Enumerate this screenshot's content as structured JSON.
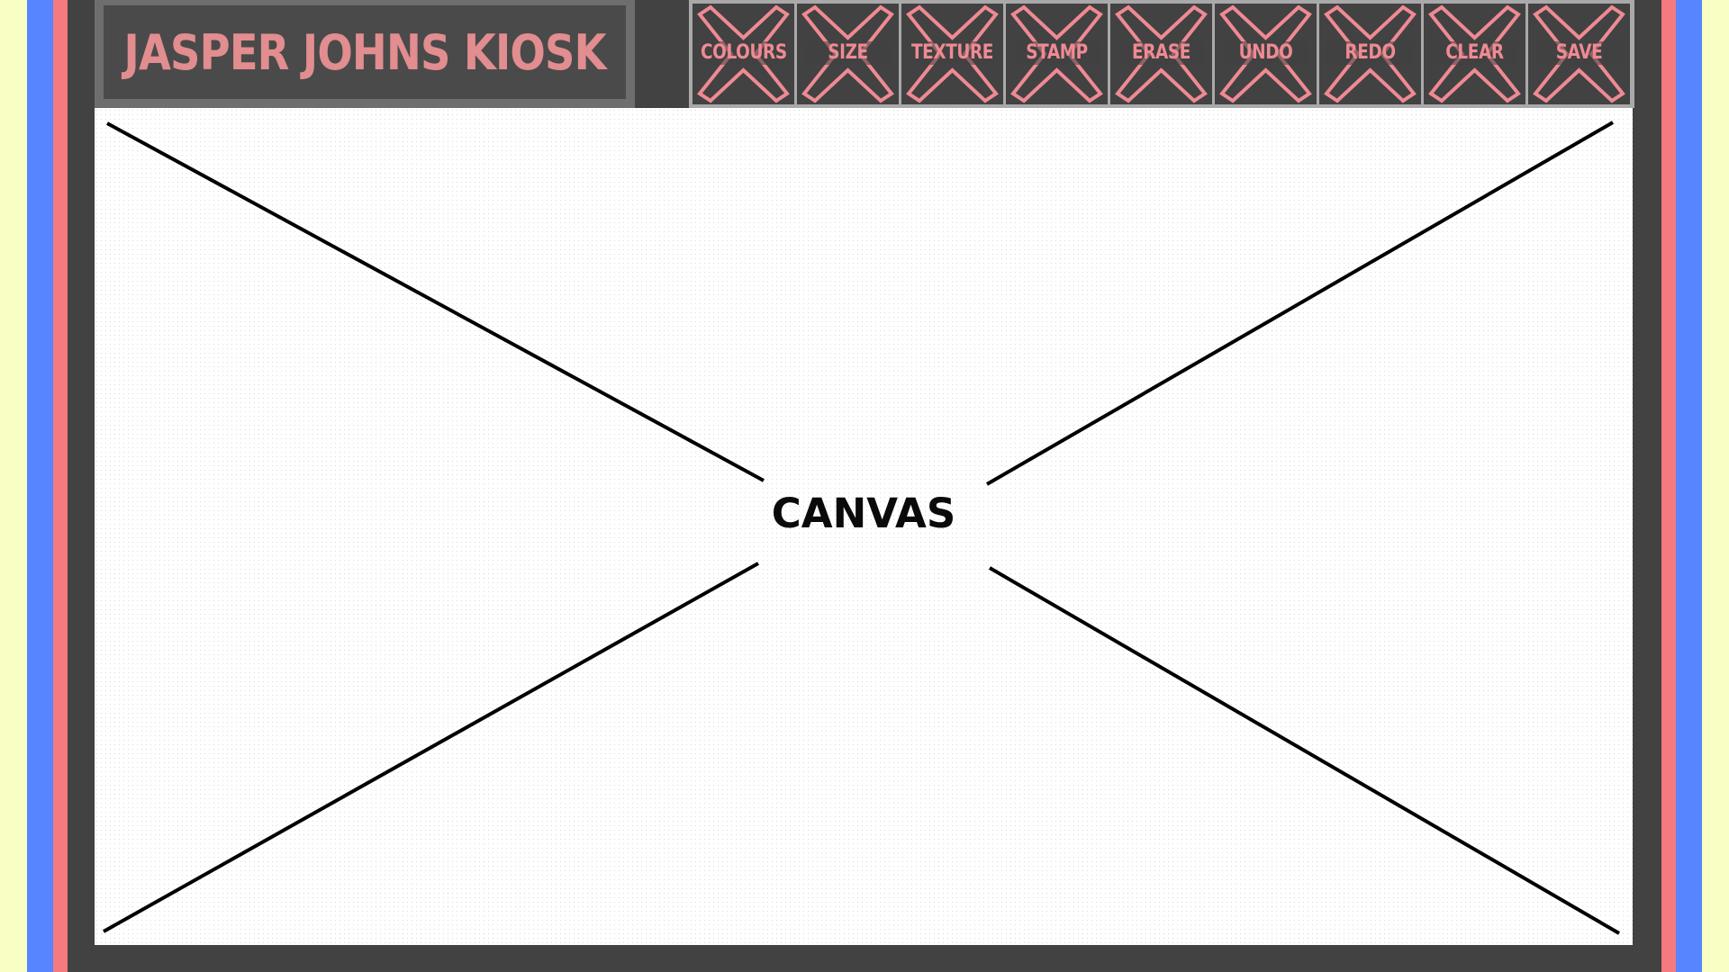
{
  "app": {
    "title": "JASPER JOHNS KIOSK"
  },
  "toolbar": {
    "buttons": [
      {
        "label": "COLOURS",
        "icon": "placeholder-x-icon"
      },
      {
        "label": "SIZE",
        "icon": "placeholder-x-icon"
      },
      {
        "label": "TEXTURE",
        "icon": "placeholder-x-icon"
      },
      {
        "label": "STAMP",
        "icon": "placeholder-x-icon"
      },
      {
        "label": "ERASE",
        "icon": "placeholder-x-icon"
      },
      {
        "label": "UNDO",
        "icon": "placeholder-x-icon"
      },
      {
        "label": "REDO",
        "icon": "placeholder-x-icon"
      },
      {
        "label": "CLEAR",
        "icon": "placeholder-x-icon"
      },
      {
        "label": "SAVE",
        "icon": "placeholder-x-icon"
      }
    ]
  },
  "canvas": {
    "label": "CANVAS"
  },
  "colors": {
    "background": "#f9fec4",
    "stripe_blue": "#5685ff",
    "stripe_red": "#f47a80",
    "frame": "#424242",
    "accent_pink": "#ef8a93",
    "title_text": "#e28d8f"
  }
}
